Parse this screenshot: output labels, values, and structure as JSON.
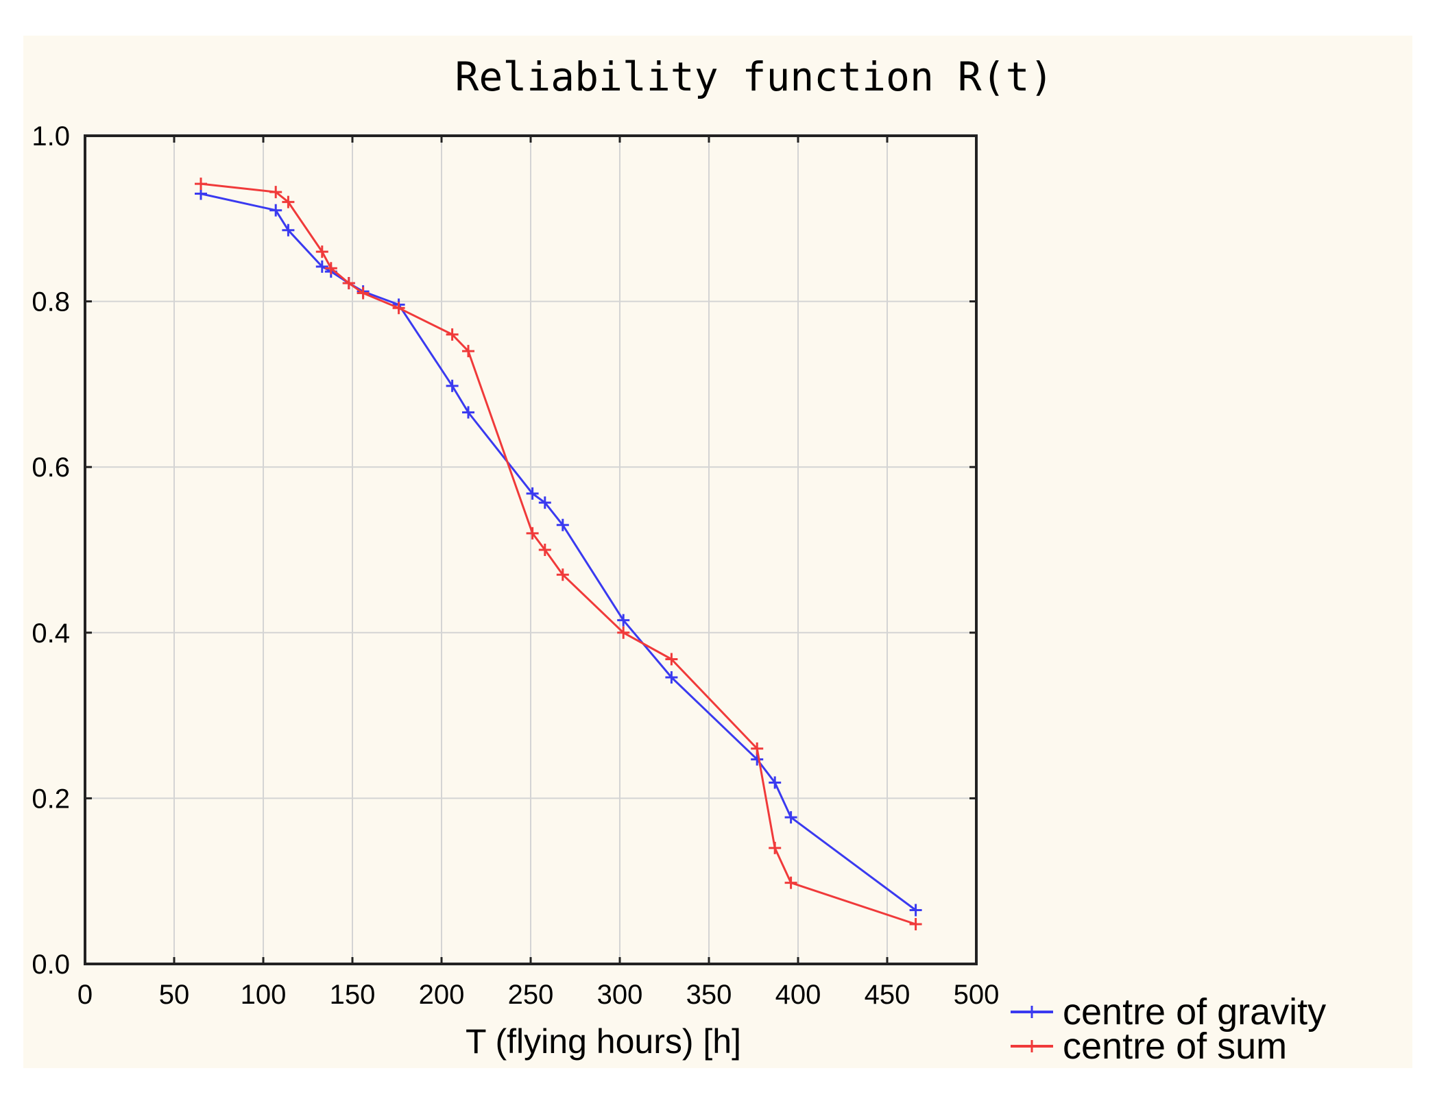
{
  "chart_data": {
    "type": "line",
    "title": "Reliability function R(t)",
    "xlabel": "T (flying hours) [h]",
    "ylabel": "",
    "xlim": [
      0,
      500
    ],
    "ylim": [
      0,
      1
    ],
    "grid": true,
    "legend_position": "bottom-right, outside plot",
    "x_ticks": [
      "0",
      "50",
      "100",
      "150",
      "200",
      "250",
      "300",
      "350",
      "400",
      "450",
      "500"
    ],
    "y_ticks": [
      "0.0",
      "0.2",
      "0.4",
      "0.6",
      "0.8",
      "1.0"
    ],
    "series": [
      {
        "name": "centre of gravity",
        "color": "#3a3af0",
        "marker": "plus",
        "x": [
          65,
          107,
          114,
          133,
          138,
          148,
          156,
          176,
          206,
          215,
          251,
          258,
          268,
          302,
          329,
          377,
          387,
          396,
          466
        ],
        "y": [
          0.93,
          0.91,
          0.886,
          0.842,
          0.836,
          0.822,
          0.812,
          0.796,
          0.698,
          0.666,
          0.568,
          0.557,
          0.53,
          0.415,
          0.346,
          0.247,
          0.219,
          0.177,
          0.065
        ]
      },
      {
        "name": "centre of sum",
        "color": "#f03a3a",
        "marker": "plus",
        "x": [
          65,
          107,
          114,
          133,
          138,
          148,
          156,
          176,
          206,
          215,
          251,
          258,
          268,
          302,
          329,
          377,
          387,
          396,
          466
        ],
        "y": [
          0.942,
          0.932,
          0.92,
          0.86,
          0.84,
          0.822,
          0.81,
          0.792,
          0.76,
          0.74,
          0.52,
          0.5,
          0.47,
          0.4,
          0.368,
          0.26,
          0.14,
          0.098,
          0.048
        ]
      }
    ]
  }
}
